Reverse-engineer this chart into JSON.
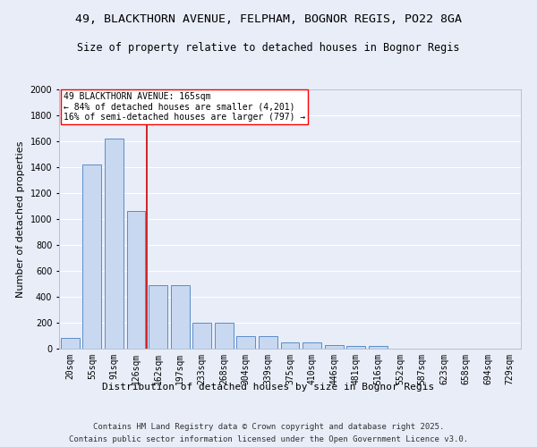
{
  "title1": "49, BLACKTHORN AVENUE, FELPHAM, BOGNOR REGIS, PO22 8GA",
  "title2": "Size of property relative to detached houses in Bognor Regis",
  "xlabel": "Distribution of detached houses by size in Bognor Regis",
  "ylabel": "Number of detached properties",
  "categories": [
    "20sqm",
    "55sqm",
    "91sqm",
    "126sqm",
    "162sqm",
    "197sqm",
    "233sqm",
    "268sqm",
    "304sqm",
    "339sqm",
    "375sqm",
    "410sqm",
    "446sqm",
    "481sqm",
    "516sqm",
    "552sqm",
    "587sqm",
    "623sqm",
    "658sqm",
    "694sqm",
    "729sqm"
  ],
  "values": [
    80,
    1420,
    1620,
    1060,
    490,
    490,
    200,
    200,
    100,
    100,
    45,
    45,
    25,
    20,
    20,
    0,
    0,
    0,
    0,
    0,
    0
  ],
  "bar_color": "#c8d8f0",
  "bar_edge_color": "#5b8dc8",
  "vline_x_index": 4,
  "vline_color": "#cc0000",
  "annotation_text": "49 BLACKTHORN AVENUE: 165sqm\n← 84% of detached houses are smaller (4,201)\n16% of semi-detached houses are larger (797) →",
  "ylim": [
    0,
    2000
  ],
  "yticks": [
    0,
    200,
    400,
    600,
    800,
    1000,
    1200,
    1400,
    1600,
    1800,
    2000
  ],
  "background_color": "#e8edf8",
  "grid_color": "#ffffff",
  "footer1": "Contains HM Land Registry data © Crown copyright and database right 2025.",
  "footer2": "Contains public sector information licensed under the Open Government Licence v3.0.",
  "title_fontsize": 9.5,
  "subtitle_fontsize": 8.5,
  "axis_label_fontsize": 8,
  "tick_fontsize": 7,
  "footer_fontsize": 6.5
}
